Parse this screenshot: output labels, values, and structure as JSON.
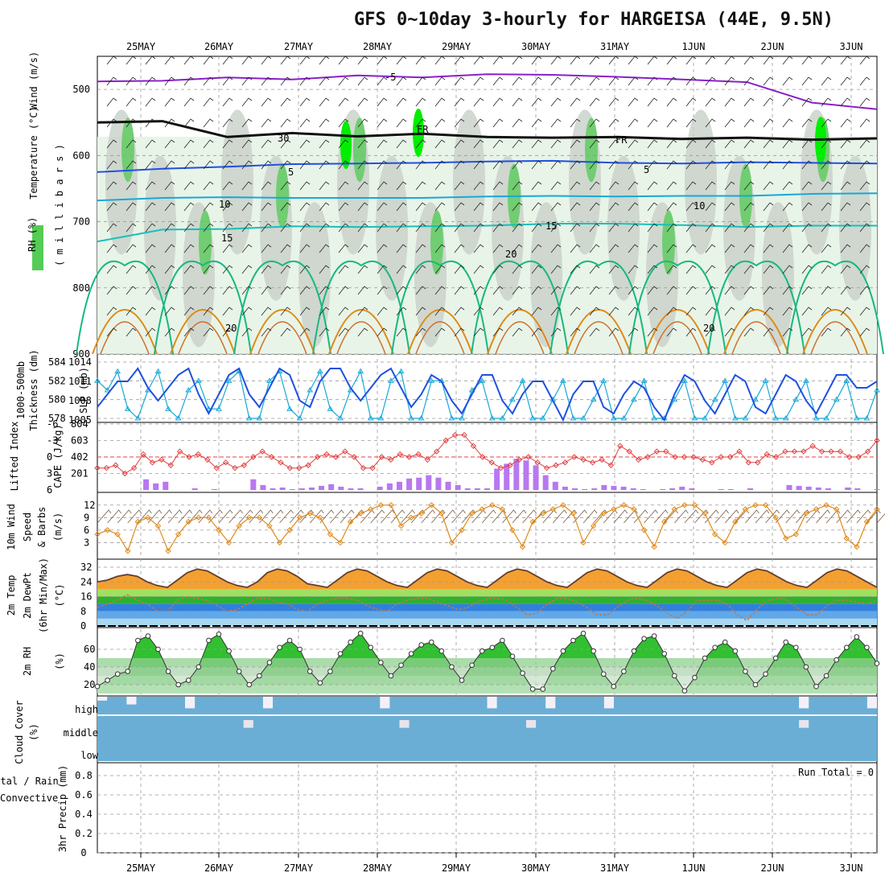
{
  "title": "GFS 0~10day 3-hourly for HARGEISA (44E, 9.5N)",
  "colors": {
    "purple": "#8a1fc9",
    "black": "#111111",
    "blue": "#2050e0",
    "cyan": "#18a8d8",
    "teal": "#18c0b8",
    "green": "#18b880",
    "orange": "#e08a18",
    "red": "#e04040",
    "lime": "#00ee00",
    "lightgreen": "#e8f4e8",
    "grey": "#c8d0c8",
    "cloudblue": "#6aaed6"
  },
  "dates": [
    "25MAY",
    "26MAY",
    "27MAY",
    "28MAY",
    "29MAY",
    "30MAY",
    "31MAY",
    "1JUN",
    "2JUN",
    "3JUN"
  ],
  "chart_data": [
    {
      "type": "heatmap",
      "title": "Wind (m/s), Temperature (°C), RH (%)",
      "ylabel": "millibars",
      "ylim": [
        900,
        450
      ],
      "yticks": [
        500,
        600,
        700,
        800,
        900
      ],
      "labels": {
        "wind": "Wind (m/s)",
        "temp": "Temperature (°C)",
        "rh": "RH (%)",
        "mb": "( m i l l i b a r s )"
      },
      "isotherm_labels": [
        "-5",
        "FR",
        "FR",
        "5",
        "5",
        "10",
        "10",
        "15",
        "15",
        "20",
        "20",
        "20",
        "30"
      ],
      "contours": [
        {
          "name": "-5°C",
          "level_mb": [
            488,
            487,
            482,
            485,
            479,
            482,
            477,
            478,
            481,
            485,
            489,
            520,
            530
          ]
        },
        {
          "name": "0°C (FR)",
          "level_mb": [
            550,
            548,
            572,
            566,
            571,
            567,
            572,
            573,
            572,
            575,
            573,
            576,
            574
          ]
        },
        {
          "name": "5°C",
          "level_mb": [
            625,
            620,
            617,
            613,
            612,
            611,
            609,
            608,
            611,
            612,
            610,
            611,
            612
          ]
        },
        {
          "name": "10°C",
          "level_mb": [
            668,
            664,
            663,
            664,
            664,
            664,
            662,
            661,
            662,
            661,
            661,
            658,
            657
          ]
        },
        {
          "name": "15°C",
          "level_mb": [
            730,
            712,
            711,
            707,
            708,
            707,
            706,
            703,
            703,
            705,
            708,
            706,
            706
          ]
        }
      ]
    },
    {
      "type": "line",
      "title": "1000-500mb Thickness (dm) / SLP (mb)",
      "labels": {
        "left": "1000-500mb",
        "left2": "Thickness (dm)",
        "right": "SLP (mb)"
      },
      "yticks_left": [
        584,
        582,
        580,
        578
      ],
      "yticks_right": [
        1014,
        1011,
        1008,
        1005
      ],
      "series": [
        {
          "name": "Thickness",
          "color": "cyan",
          "values": [
            582,
            581,
            583,
            579,
            578,
            581,
            583,
            579,
            578,
            581,
            582,
            579,
            579,
            582,
            583,
            578,
            578,
            582,
            583,
            579,
            578,
            581,
            583,
            579,
            578,
            581,
            583,
            578,
            578,
            582,
            583,
            578,
            578,
            582,
            582,
            578,
            578,
            581,
            582,
            578,
            578,
            580,
            582,
            578,
            578,
            580,
            582,
            578,
            578,
            580,
            582,
            578,
            578,
            580,
            582,
            578,
            578,
            580,
            582,
            578,
            578,
            580,
            582,
            578,
            578,
            580,
            582,
            578,
            578,
            580,
            582,
            578,
            578,
            580,
            582,
            578,
            578,
            581
          ]
        },
        {
          "name": "SLP",
          "color": "blue",
          "values": [
            1007,
            1009,
            1011,
            1011,
            1013,
            1010,
            1008,
            1010,
            1012,
            1013,
            1009,
            1006,
            1009,
            1012,
            1013,
            1009,
            1007,
            1010,
            1013,
            1012,
            1008,
            1007,
            1011,
            1013,
            1013,
            1010,
            1008,
            1010,
            1012,
            1013,
            1010,
            1007,
            1009,
            1012,
            1011,
            1008,
            1006,
            1009,
            1012,
            1012,
            1008,
            1006,
            1009,
            1011,
            1011,
            1008,
            1005,
            1009,
            1011,
            1011,
            1007,
            1006,
            1009,
            1011,
            1010,
            1007,
            1005,
            1009,
            1012,
            1011,
            1008,
            1006,
            1009,
            1012,
            1011,
            1007,
            1006,
            1009,
            1012,
            1011,
            1008,
            1006,
            1009,
            1012,
            1012,
            1010,
            1010,
            1011
          ]
        }
      ]
    },
    {
      "type": "bar",
      "title": "Lifted Index / CAPE (J/kg)",
      "labels": {
        "left": "Lifted Index",
        "right": "CAPE (J/kg)"
      },
      "yticks_left": [
        -6,
        -3,
        0,
        3,
        6
      ],
      "yticks_right": [
        804,
        603,
        402,
        201
      ],
      "series": [
        {
          "name": "CAPE",
          "color": "purple",
          "values": [
            0,
            0,
            0,
            0,
            0,
            130,
            80,
            100,
            0,
            0,
            20,
            0,
            10,
            0,
            0,
            0,
            130,
            60,
            20,
            30,
            10,
            20,
            30,
            50,
            70,
            40,
            20,
            20,
            0,
            40,
            80,
            100,
            140,
            150,
            180,
            150,
            100,
            60,
            20,
            20,
            20,
            260,
            320,
            380,
            360,
            300,
            180,
            100,
            40,
            20,
            10,
            20,
            60,
            50,
            40,
            20,
            10,
            0,
            10,
            20,
            40,
            20,
            0,
            0,
            10,
            10,
            0,
            20,
            0,
            0,
            0,
            60,
            50,
            40,
            30,
            20,
            0,
            30,
            20,
            0,
            10
          ]
        },
        {
          "name": "Lifted Index",
          "color": "red",
          "values": [
            2,
            2,
            1.5,
            3,
            2,
            -0.5,
            1,
            0.5,
            1.5,
            -1,
            0,
            -0.5,
            0.5,
            2,
            1,
            2,
            1.5,
            0,
            -1,
            0,
            1,
            2,
            2,
            1.5,
            0,
            -0.5,
            0,
            -1,
            0,
            2,
            2,
            0,
            0.5,
            -0.5,
            0,
            -0.5,
            0.5,
            -1,
            -3,
            -4,
            -4,
            -2,
            0,
            1,
            2,
            1.5,
            0.5,
            0,
            1,
            2,
            1.5,
            1,
            0,
            0.5,
            1,
            0.5,
            1.5,
            -2,
            -1,
            0.5,
            0,
            -1,
            -1,
            0,
            0,
            0,
            0.5,
            1,
            0,
            0,
            -1,
            1,
            1,
            -0.5,
            0,
            -1,
            -1,
            -1,
            -2,
            -1,
            -1,
            -1,
            0,
            0,
            -1,
            -3
          ]
        }
      ]
    },
    {
      "type": "line",
      "title": "10m Wind Speed & Barbs (m/s)",
      "labels": {
        "a": "10m Wind",
        "b": "Speed",
        "c": "& Barbs",
        "d": "(m/s)"
      },
      "yticks": [
        12,
        9,
        6,
        3
      ],
      "series": [
        {
          "name": "Wind speed",
          "color": "orange",
          "values": [
            5,
            6,
            5,
            1,
            8,
            9,
            7,
            1,
            5,
            8,
            9,
            9,
            6,
            3,
            7,
            9,
            9,
            7,
            3,
            6,
            9,
            10,
            9,
            5,
            3,
            8,
            10,
            11,
            12,
            12,
            7,
            9,
            10,
            12,
            10,
            3,
            6,
            10,
            11,
            12,
            11,
            6,
            2,
            8,
            10,
            11,
            12,
            10,
            3,
            7,
            10,
            11,
            12,
            11,
            6,
            2,
            8,
            11,
            12,
            12,
            10,
            5,
            3,
            8,
            11,
            12,
            12,
            9,
            4,
            5,
            10,
            11,
            12,
            11,
            4,
            2,
            8,
            11
          ]
        }
      ]
    },
    {
      "type": "area",
      "title": "2m Temp / 2m DewPt (6hr Min/Max) (°C)",
      "labels": {
        "a": "2m Temp",
        "b": "2m DewPt",
        "c": "(6hr Min/Max)",
        "d": "(°C)"
      },
      "yticks": [
        32,
        24,
        16,
        8,
        0
      ],
      "series": [
        {
          "name": "2m Temp",
          "color": "black",
          "values": [
            24,
            25,
            27,
            28,
            27,
            24,
            22,
            21,
            25,
            29,
            31,
            30,
            27,
            24,
            22,
            21,
            24,
            29,
            31,
            30,
            27,
            23,
            22,
            21,
            25,
            29,
            31,
            30,
            27,
            24,
            22,
            21,
            25,
            29,
            31,
            30,
            27,
            24,
            22,
            21,
            25,
            29,
            31,
            30,
            27,
            24,
            22,
            21,
            25,
            29,
            31,
            30,
            27,
            24,
            22,
            21,
            25,
            29,
            31,
            30,
            27,
            24,
            22,
            21,
            25,
            29,
            31,
            30,
            27,
            24,
            22,
            21,
            25,
            29,
            31,
            30,
            27,
            24,
            21
          ]
        },
        {
          "name": "2m DewPt",
          "color": "orange",
          "values": [
            10,
            12,
            14,
            17,
            14,
            12,
            8,
            8,
            14,
            16,
            15,
            14,
            11,
            8,
            9,
            12,
            15,
            15,
            13,
            12,
            9,
            8,
            12,
            14,
            15,
            15,
            14,
            11,
            9,
            8,
            12,
            14,
            15,
            15,
            13,
            11,
            9,
            10,
            13,
            15,
            15,
            14,
            10,
            6,
            7,
            12,
            15,
            15,
            13,
            10,
            6,
            6,
            10,
            14,
            15,
            14,
            11,
            7,
            4,
            8,
            14,
            14,
            14,
            12,
            6,
            3,
            9,
            14,
            15,
            14,
            10,
            6,
            6,
            11,
            14,
            14,
            13,
            12,
            14
          ]
        }
      ]
    },
    {
      "type": "area",
      "title": "2m RH (%)",
      "labels": {
        "a": "2m RH",
        "b": "(%)"
      },
      "yticks": [
        60,
        40,
        20
      ],
      "series": [
        {
          "name": "2m RH",
          "color": "green",
          "values": [
            18,
            25,
            32,
            35,
            70,
            75,
            60,
            35,
            20,
            25,
            40,
            70,
            77,
            58,
            35,
            20,
            30,
            45,
            62,
            70,
            60,
            35,
            22,
            35,
            55,
            68,
            78,
            62,
            45,
            30,
            42,
            55,
            65,
            68,
            58,
            40,
            25,
            42,
            58,
            62,
            70,
            52,
            33,
            15,
            15,
            38,
            58,
            70,
            78,
            58,
            32,
            18,
            35,
            58,
            72,
            75,
            55,
            30,
            13,
            28,
            50,
            62,
            68,
            58,
            35,
            20,
            32,
            50,
            68,
            62,
            40,
            18,
            30,
            48,
            62,
            74,
            62,
            44
          ]
        }
      ]
    },
    {
      "type": "bar",
      "title": "Cloud Cover (%)",
      "labels": {
        "a": "Cloud Cover",
        "b": "(%)",
        "high": "high",
        "middle": "middle",
        "low": "low"
      },
      "series": [
        {
          "name": "high",
          "values": [
            80,
            100,
            100,
            60,
            100,
            100,
            100,
            100,
            100,
            40,
            100,
            100,
            100,
            100,
            100,
            100,
            100,
            40,
            100,
            100,
            100,
            100,
            100,
            100,
            100,
            100,
            100,
            100,
            100,
            40,
            100,
            100,
            100,
            100,
            100,
            100,
            100,
            100,
            100,
            100,
            40,
            100,
            100,
            100,
            100,
            100,
            40,
            100,
            100,
            100,
            100,
            100,
            40,
            100,
            100,
            100,
            100,
            100,
            100,
            100,
            100,
            100,
            100,
            100,
            100,
            100,
            100,
            100,
            100,
            100,
            100,
            100,
            40,
            100,
            100,
            100,
            100,
            100,
            100,
            40
          ]
        },
        {
          "name": "middle",
          "values": [
            0,
            0,
            0,
            0,
            0,
            0,
            0,
            0,
            0,
            0,
            0,
            0,
            0,
            0,
            0,
            40,
            0,
            0,
            0,
            0,
            0,
            0,
            0,
            0,
            0,
            0,
            0,
            0,
            0,
            0,
            0,
            40,
            0,
            0,
            0,
            0,
            0,
            0,
            0,
            0,
            0,
            0,
            0,
            0,
            40,
            0,
            0,
            0,
            0,
            0,
            0,
            0,
            0,
            0,
            0,
            0,
            0,
            0,
            0,
            0,
            0,
            0,
            0,
            0,
            0,
            0,
            0,
            0,
            0,
            0,
            0,
            0,
            40,
            0,
            0,
            0,
            0,
            0,
            0,
            0
          ]
        }
      ]
    },
    {
      "type": "bar",
      "title": "3hr Precip (mm)",
      "labels": {
        "a": "Total / Rain",
        "b": "Convective",
        "c": "3hr Precip (mm)",
        "run": "Run Total = 0"
      },
      "yticks": [
        0.8,
        0.6,
        0.4,
        0.2,
        0
      ],
      "ylim": [
        0,
        0.9
      ],
      "series": [
        {
          "name": "Precip",
          "values": []
        }
      ]
    }
  ]
}
